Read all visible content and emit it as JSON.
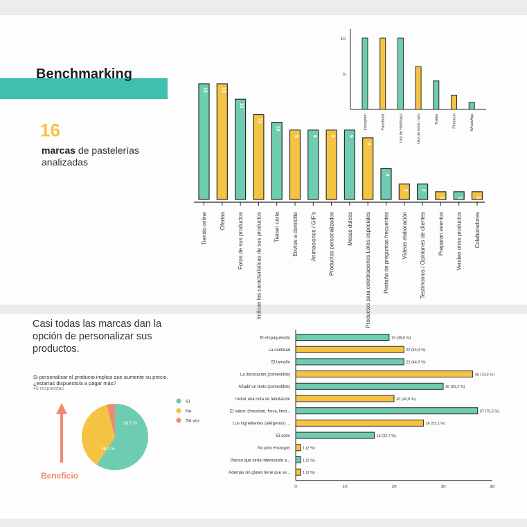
{
  "header": {
    "title": "Benchmarking",
    "count": "16",
    "subtitle_bold": "marcas",
    "subtitle_rest": " de pastelerías analizadas"
  },
  "bottom": {
    "title": "Casi todas las marcas dan la opción de personalizar sus productos.",
    "question_line1": "Si personalizar el producto implica que aumente su precio.",
    "question_line2": "¿estarías dispuesto/a a pagar más?",
    "responses": "49 respuestas",
    "arrow_label": "Beneficio"
  },
  "colors": {
    "teal": "#6ecdb1",
    "yellow": "#f5c342",
    "salmon": "#ef8a72",
    "teal_dark": "#3fbfad"
  },
  "chart_data": [
    {
      "type": "bar",
      "orientation": "vertical",
      "categories": [
        "Tienda online",
        "Ofertas",
        "Fotos de sus productos",
        "Indican las características de sus productos",
        "Tienen carta",
        "Envíos a domicilio",
        "Animaciones / GIF's",
        "Productos personalizados",
        "Mesas dulces",
        "Productos para celebraciones Lotes especiales",
        "Pestaña de preguntas frecuentes",
        "Vídeos elaboración",
        "Testimonios / Opiniones de clientes",
        "Preparan eventos",
        "Venden otros productos",
        "Colaboradores"
      ],
      "values": [
        15,
        15,
        13,
        11,
        10,
        9,
        9,
        9,
        9,
        8,
        4,
        2,
        2,
        1,
        1,
        1
      ],
      "bar_labels": [
        "15",
        "15",
        "13",
        "11",
        "10",
        "9",
        "9",
        "9",
        "9",
        "8",
        "4",
        "2",
        "2",
        "1",
        "1",
        "1"
      ],
      "colors": [
        "teal",
        "yellow",
        "teal",
        "yellow",
        "teal",
        "yellow",
        "teal",
        "yellow",
        "teal",
        "yellow",
        "teal",
        "yellow",
        "teal",
        "yellow",
        "teal",
        "yellow"
      ],
      "ylim": [
        0,
        15
      ]
    },
    {
      "type": "bar",
      "orientation": "vertical",
      "categories": [
        "Instagram",
        "Facebook",
        "Uso de Hashtags",
        "Uso de reels / igtv",
        "Twitter",
        "Pinterest",
        "WhatsApp"
      ],
      "values": [
        10,
        10,
        10,
        6,
        4,
        2,
        1
      ],
      "colors": [
        "teal",
        "yellow",
        "teal",
        "yellow",
        "teal",
        "yellow",
        "teal"
      ],
      "yticks": [
        5,
        10
      ],
      "ylim": [
        0,
        12
      ]
    },
    {
      "type": "pie",
      "labels": [
        "Sí",
        "No",
        "Tal vez"
      ],
      "values": [
        59.2,
        36.7,
        4.1
      ],
      "slice_labels": [
        "59.2 %",
        "36.7 %",
        ""
      ],
      "colors": [
        "teal",
        "yellow",
        "salmon"
      ]
    },
    {
      "type": "bar",
      "orientation": "horizontal",
      "categories": [
        "El empaquetado",
        "La cantidad",
        "El tamaño",
        "La decoración (comestible)",
        "Añadir un texto (comestible)",
        "Incluir una nota de felicitación",
        "El sabor: chocolate, fresa, limó...",
        "Los ingredientes (alérgenos) ...",
        "El color",
        "No pido encargos",
        "Pienso que sería interesante a...",
        "Además sin gluten tiene que se..."
      ],
      "values": [
        19,
        22,
        22,
        36,
        30,
        20,
        37,
        26,
        16,
        1,
        1,
        1
      ],
      "value_labels": [
        "19 (38,8 %)",
        "22 (44,9 %)",
        "22 (44,9 %)",
        "36 (73,5 %)",
        "30 (61,2 %)",
        "20 (40,8 %)",
        "37 (75,5 %)",
        "26 (53,1 %)",
        "16 (32,7 %)",
        "1 (2 %)",
        "1 (2 %)",
        "1 (2 %)"
      ],
      "colors": [
        "teal",
        "yellow",
        "teal",
        "yellow",
        "teal",
        "yellow",
        "teal",
        "yellow",
        "teal",
        "yellow",
        "teal",
        "yellow"
      ],
      "xticks": [
        "0",
        "10",
        "20",
        "30",
        "40"
      ],
      "xlim": [
        0,
        40
      ]
    }
  ]
}
